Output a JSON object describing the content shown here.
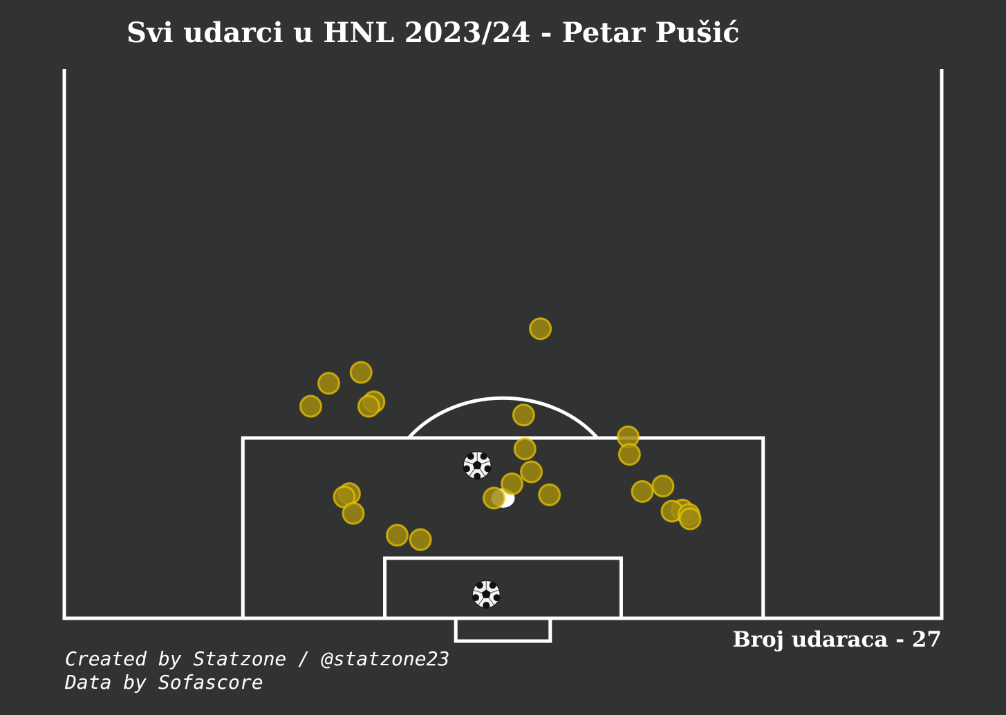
{
  "title": "Svi udarci u HNL 2023/24 - Petar Pušić",
  "count_label": "Broj udaraca - 27",
  "credits": {
    "line1": "Created by Statzone / @statzone23",
    "line2": "Data by Sofascore"
  },
  "colors": {
    "background": "#313332",
    "lines": "#ffffff",
    "shot_fill": "#a08a10",
    "shot_edge": "#e8c400",
    "goal_marker": "football-icon"
  },
  "chart_data": {
    "type": "scatter",
    "title": "Svi udarci u HNL 2023/24 - Petar Pušić",
    "xlabel": "",
    "ylabel": "",
    "pitch": "half-pitch, attacking goal at bottom, coordinates in metres from left touchline (x, 0–68) and from goal line (y, 0–~42 visible)",
    "xlim": [
      0,
      68
    ],
    "ylim": [
      0,
      42
    ],
    "grid": false,
    "legend": "none",
    "total_shots": 27,
    "shots": [
      {
        "x": 36.9,
        "y": 26.5,
        "outcome": "shot"
      },
      {
        "x": 23.0,
        "y": 22.5,
        "outcome": "shot"
      },
      {
        "x": 20.5,
        "y": 21.5,
        "outcome": "shot"
      },
      {
        "x": 24.0,
        "y": 19.8,
        "outcome": "shot"
      },
      {
        "x": 23.6,
        "y": 19.4,
        "outcome": "shot"
      },
      {
        "x": 19.1,
        "y": 19.4,
        "outcome": "shot"
      },
      {
        "x": 35.6,
        "y": 18.6,
        "outcome": "shot"
      },
      {
        "x": 43.7,
        "y": 16.6,
        "outcome": "shot"
      },
      {
        "x": 43.8,
        "y": 15.0,
        "outcome": "shot"
      },
      {
        "x": 35.7,
        "y": 15.5,
        "outcome": "shot"
      },
      {
        "x": 32.0,
        "y": 14.0,
        "outcome": "goal"
      },
      {
        "x": 36.2,
        "y": 13.4,
        "outcome": "shot"
      },
      {
        "x": 34.7,
        "y": 12.3,
        "outcome": "shot"
      },
      {
        "x": 46.4,
        "y": 12.1,
        "outcome": "shot"
      },
      {
        "x": 44.8,
        "y": 11.6,
        "outcome": "shot"
      },
      {
        "x": 22.1,
        "y": 11.4,
        "outcome": "shot"
      },
      {
        "x": 21.7,
        "y": 11.1,
        "outcome": "shot"
      },
      {
        "x": 37.6,
        "y": 11.3,
        "outcome": "shot"
      },
      {
        "x": 33.3,
        "y": 11.0,
        "outcome": "shot"
      },
      {
        "x": 47.9,
        "y": 9.9,
        "outcome": "shot"
      },
      {
        "x": 47.1,
        "y": 9.8,
        "outcome": "shot"
      },
      {
        "x": 48.4,
        "y": 9.5,
        "outcome": "shot"
      },
      {
        "x": 48.5,
        "y": 9.1,
        "outcome": "shot"
      },
      {
        "x": 22.4,
        "y": 9.6,
        "outcome": "shot"
      },
      {
        "x": 25.8,
        "y": 7.6,
        "outcome": "shot"
      },
      {
        "x": 27.6,
        "y": 7.2,
        "outcome": "shot"
      },
      {
        "x": 32.7,
        "y": 2.2,
        "outcome": "goal"
      }
    ]
  }
}
